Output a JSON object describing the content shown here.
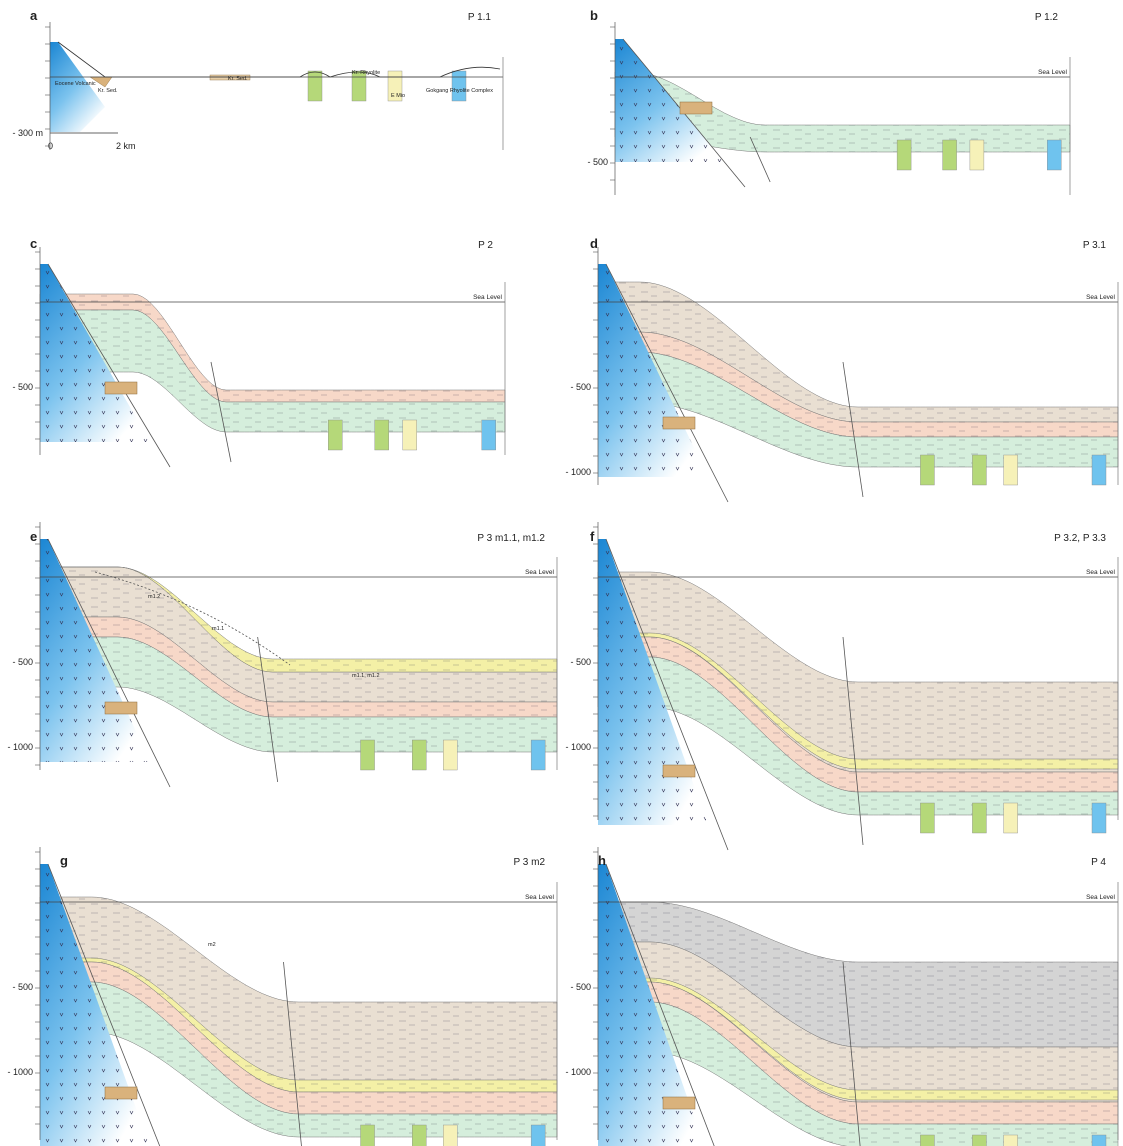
{
  "panels": [
    {
      "letter": "a",
      "stage": "P 1.1",
      "depth_ticks": [
        "- 300 m"
      ],
      "labels": [
        "Eocene Volcanic",
        "Kr. Sed.",
        "Kr. Sed.",
        "Kr. Rhyolite",
        "E Mio",
        "Gokgang Rhyolite Complex"
      ],
      "scale": [
        "0",
        "2 km"
      ]
    },
    {
      "letter": "b",
      "stage": "P 1.2",
      "sea_label": "Sea Level",
      "depth_ticks": [
        "- 500"
      ]
    },
    {
      "letter": "c",
      "stage": "P 2",
      "sea_label": "Sea Level",
      "depth_ticks": [
        "- 500"
      ]
    },
    {
      "letter": "d",
      "stage": "P 3.1",
      "sea_label": "Sea Level",
      "depth_ticks": [
        "- 500",
        "- 1000"
      ]
    },
    {
      "letter": "e",
      "stage": "P 3 m1.1, m1.2",
      "sea_label": "Sea Level",
      "depth_ticks": [
        "- 500",
        "- 1000"
      ],
      "labels": [
        "m1.2",
        "m1.1",
        "m1.1, m1.2"
      ]
    },
    {
      "letter": "f",
      "stage": "P 3.2, P 3.3",
      "sea_label": "Sea Level",
      "depth_ticks": [
        "- 500",
        "- 1000"
      ]
    },
    {
      "letter": "g",
      "stage": "P 3 m2",
      "sea_label": "Sea Level",
      "depth_ticks": [
        "- 500",
        "- 1000"
      ],
      "labels": [
        "m2"
      ]
    },
    {
      "letter": "h",
      "stage": "P 4",
      "sea_label": "Sea Level",
      "depth_ticks": [
        "- 500",
        "- 1000"
      ]
    }
  ]
}
